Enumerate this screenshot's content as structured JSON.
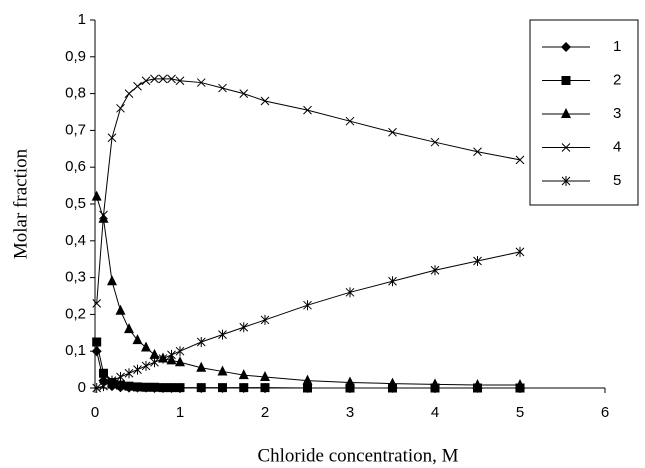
{
  "chart_data": {
    "type": "line",
    "x_label": "Chloride concentration, M",
    "y_label": "Molar fraction",
    "x": [
      0.02,
      0.1,
      0.2,
      0.3,
      0.4,
      0.5,
      0.6,
      0.7,
      0.8,
      0.9,
      1.0,
      1.25,
      1.5,
      1.75,
      2,
      2.5,
      3,
      3.5,
      4,
      4.5,
      5
    ],
    "series": [
      {
        "name": "1",
        "color": "#000000",
        "marker": "diamond",
        "values": [
          0.1,
          0.02,
          0.005,
          0.002,
          0.001,
          0.001,
          0.001,
          0,
          0,
          0,
          0,
          0,
          0,
          0,
          0,
          0,
          0,
          0,
          0,
          0,
          0
        ]
      },
      {
        "name": "2",
        "color": "#000000",
        "marker": "square",
        "values": [
          0.125,
          0.04,
          0.015,
          0.008,
          0.005,
          0.003,
          0.002,
          0.002,
          0.001,
          0.001,
          0.001,
          0.001,
          0.001,
          0.001,
          0.001,
          0,
          0,
          0,
          0,
          0,
          0
        ]
      },
      {
        "name": "3",
        "color": "#000000",
        "marker": "triangle",
        "values": [
          0.52,
          0.46,
          0.29,
          0.21,
          0.16,
          0.13,
          0.11,
          0.09,
          0.08,
          0.075,
          0.07,
          0.055,
          0.045,
          0.035,
          0.03,
          0.02,
          0.015,
          0.012,
          0.01,
          0.008,
          0.008
        ]
      },
      {
        "name": "4",
        "color": "#000000",
        "marker": "x",
        "values": [
          0.23,
          0.47,
          0.68,
          0.76,
          0.8,
          0.82,
          0.835,
          0.84,
          0.84,
          0.84,
          0.835,
          0.83,
          0.815,
          0.8,
          0.78,
          0.755,
          0.725,
          0.695,
          0.668,
          0.642,
          0.62
        ]
      },
      {
        "name": "5",
        "color": "#000000",
        "marker": "star",
        "values": [
          0.0,
          0.005,
          0.02,
          0.03,
          0.04,
          0.05,
          0.06,
          0.07,
          0.08,
          0.09,
          0.1,
          0.125,
          0.145,
          0.165,
          0.185,
          0.225,
          0.26,
          0.29,
          0.32,
          0.345,
          0.37
        ]
      }
    ],
    "xlim": [
      0,
      6
    ],
    "xticks": [
      0,
      1,
      2,
      3,
      4,
      5,
      6
    ],
    "ylim": [
      0,
      1
    ],
    "yticks": [
      0,
      {
        "value": 0.1,
        "label": "0,1"
      },
      {
        "value": 0.2,
        "label": "0,2"
      },
      {
        "value": 0.3,
        "label": "0,3"
      },
      {
        "value": 0.4,
        "label": "0,4"
      },
      {
        "value": 0.5,
        "label": "0,5"
      },
      {
        "value": 0.6,
        "label": "0,6"
      },
      {
        "value": 0.7,
        "label": "0,7"
      },
      {
        "value": 0.8,
        "label": "0,8"
      },
      {
        "value": 0.9,
        "label": "0,9"
      },
      1
    ],
    "grid": false,
    "legend_position": "upper right"
  }
}
